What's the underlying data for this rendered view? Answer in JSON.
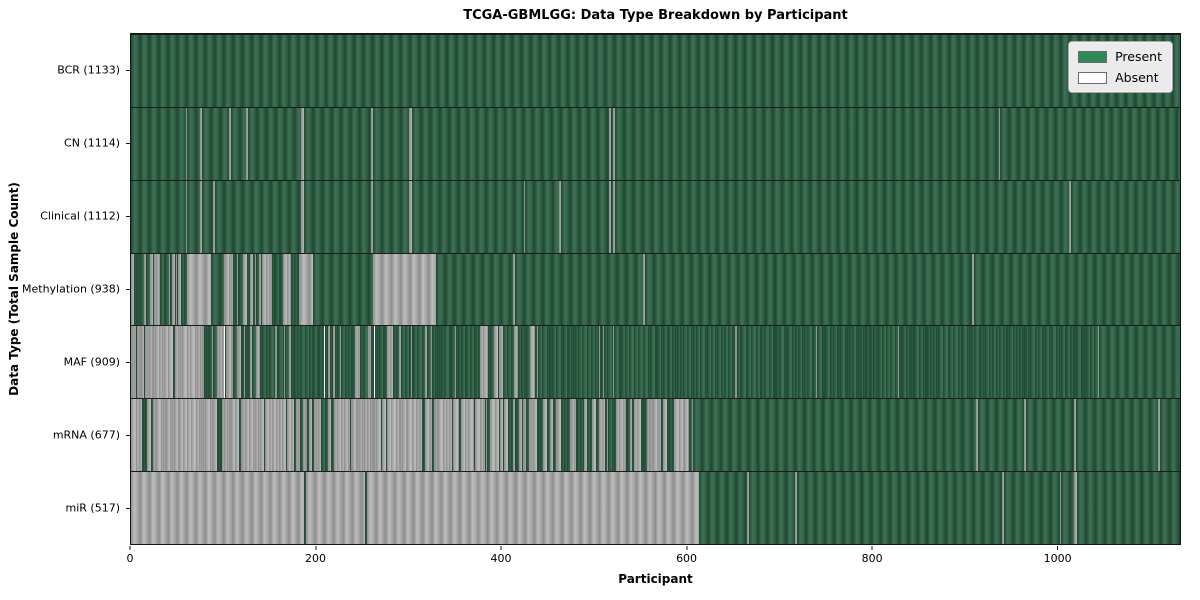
{
  "title": "TCGA-GBMLGG: Data Type Breakdown by Participant",
  "axes": {
    "x_label": "Participant",
    "y_label": "Data Type (Total Sample Count)"
  },
  "legend": {
    "entries": [
      {
        "label": "Present",
        "state": "present"
      },
      {
        "label": "Absent",
        "state": "absent"
      }
    ],
    "position": "upper right"
  },
  "colors": {
    "present": "#2e8b57",
    "present_rendered": "#2d5f45",
    "absent": "#ffffff",
    "absent_rendered": "#a8a8a8",
    "legend_background": "#ebebeb",
    "plot_border": "#151515"
  },
  "chart_data": {
    "type": "heatmap",
    "title": "TCGA-GBMLGG: Data Type Breakdown by Participant",
    "xlabel": "Participant",
    "ylabel": "Data Type (Total Sample Count)",
    "x_ticks": [
      0,
      200,
      400,
      600,
      800,
      1000
    ],
    "x_max": 1133,
    "grid": false,
    "legend_position": "upper right",
    "value_meaning": {
      "1": "Present",
      "0": "Absent"
    },
    "rows": [
      {
        "name": "BCR",
        "count": 1133,
        "label": "BCR (1133)",
        "segments": [
          [
            0,
            1133,
            1
          ]
        ]
      },
      {
        "name": "CN",
        "count": 1114,
        "label": "CN (1114)",
        "segments": [
          [
            0,
            59,
            1
          ],
          [
            59,
            61,
            0
          ],
          [
            61,
            75,
            1
          ],
          [
            75,
            77,
            0
          ],
          [
            77,
            106,
            1
          ],
          [
            106,
            108,
            0
          ],
          [
            108,
            124,
            1
          ],
          [
            124,
            126,
            0
          ],
          [
            126,
            184,
            1
          ],
          [
            184,
            187,
            0
          ],
          [
            187,
            259,
            1
          ],
          [
            259,
            261,
            0
          ],
          [
            261,
            300,
            1
          ],
          [
            300,
            303,
            0
          ],
          [
            303,
            516,
            1
          ],
          [
            516,
            518,
            0
          ],
          [
            518,
            521,
            1
          ],
          [
            521,
            523,
            0
          ],
          [
            523,
            937,
            1
          ],
          [
            937,
            939,
            0
          ],
          [
            939,
            1133,
            1
          ]
        ]
      },
      {
        "name": "Clinical",
        "count": 1112,
        "label": "Clinical (1112)",
        "segments": [
          [
            0,
            59,
            1
          ],
          [
            59,
            61,
            0
          ],
          [
            61,
            75,
            1
          ],
          [
            75,
            77,
            0
          ],
          [
            77,
            89,
            1
          ],
          [
            89,
            91,
            0
          ],
          [
            91,
            184,
            1
          ],
          [
            184,
            187,
            0
          ],
          [
            187,
            259,
            1
          ],
          [
            259,
            261,
            0
          ],
          [
            261,
            300,
            1
          ],
          [
            300,
            303,
            0
          ],
          [
            303,
            424,
            1
          ],
          [
            424,
            426,
            0
          ],
          [
            426,
            462,
            1
          ],
          [
            462,
            464,
            0
          ],
          [
            464,
            516,
            1
          ],
          [
            516,
            518,
            0
          ],
          [
            518,
            521,
            1
          ],
          [
            521,
            523,
            0
          ],
          [
            523,
            1013,
            1
          ],
          [
            1013,
            1015,
            0
          ],
          [
            1015,
            1133,
            1
          ]
        ]
      },
      {
        "name": "Methylation",
        "count": 938,
        "label": "Methylation (938)",
        "segments": [
          [
            0,
            60,
            0.65
          ],
          [
            60,
            86,
            0
          ],
          [
            86,
            100,
            1
          ],
          [
            100,
            183,
            0.45
          ],
          [
            183,
            197,
            0
          ],
          [
            197,
            261,
            1
          ],
          [
            261,
            329,
            0
          ],
          [
            329,
            413,
            1
          ],
          [
            413,
            415,
            0
          ],
          [
            415,
            553,
            1
          ],
          [
            553,
            555,
            0
          ],
          [
            555,
            908,
            1
          ],
          [
            908,
            910,
            0
          ],
          [
            910,
            1133,
            1
          ]
        ]
      },
      {
        "name": "MAF",
        "count": 909,
        "label": "MAF (909)",
        "segments": [
          [
            0,
            10,
            0.6
          ],
          [
            10,
            78,
            0.08
          ],
          [
            78,
            116,
            0.5
          ],
          [
            116,
            377,
            0.68
          ],
          [
            377,
            440,
            0.55
          ],
          [
            440,
            755,
            0.96
          ],
          [
            755,
            1044,
            0.99
          ],
          [
            1044,
            1046,
            0
          ],
          [
            1046,
            1133,
            1
          ]
        ]
      },
      {
        "name": "mRNA",
        "count": 677,
        "label": "mRNA (677)",
        "segments": [
          [
            0,
            180,
            0.18
          ],
          [
            180,
            230,
            0.45
          ],
          [
            230,
            377,
            0.25
          ],
          [
            377,
            607,
            0.38
          ],
          [
            607,
            913,
            1
          ],
          [
            913,
            915,
            0
          ],
          [
            915,
            965,
            1
          ],
          [
            965,
            967,
            0
          ],
          [
            967,
            1019,
            1
          ],
          [
            1019,
            1021,
            0
          ],
          [
            1021,
            1109,
            1
          ],
          [
            1109,
            1111,
            0
          ],
          [
            1111,
            1133,
            1
          ]
        ]
      },
      {
        "name": "miR",
        "count": 517,
        "label": "miR (517)",
        "segments": [
          [
            0,
            187,
            0
          ],
          [
            187,
            189,
            1
          ],
          [
            189,
            253,
            0
          ],
          [
            253,
            255,
            1
          ],
          [
            255,
            613,
            0
          ],
          [
            613,
            665,
            1
          ],
          [
            665,
            667,
            0
          ],
          [
            667,
            717,
            1
          ],
          [
            717,
            719,
            0
          ],
          [
            719,
            941,
            1
          ],
          [
            941,
            943,
            0
          ],
          [
            943,
            1003,
            1
          ],
          [
            1003,
            1005,
            0
          ],
          [
            1005,
            1019,
            1
          ],
          [
            1019,
            1022,
            0
          ],
          [
            1022,
            1133,
            1
          ]
        ]
      }
    ]
  }
}
